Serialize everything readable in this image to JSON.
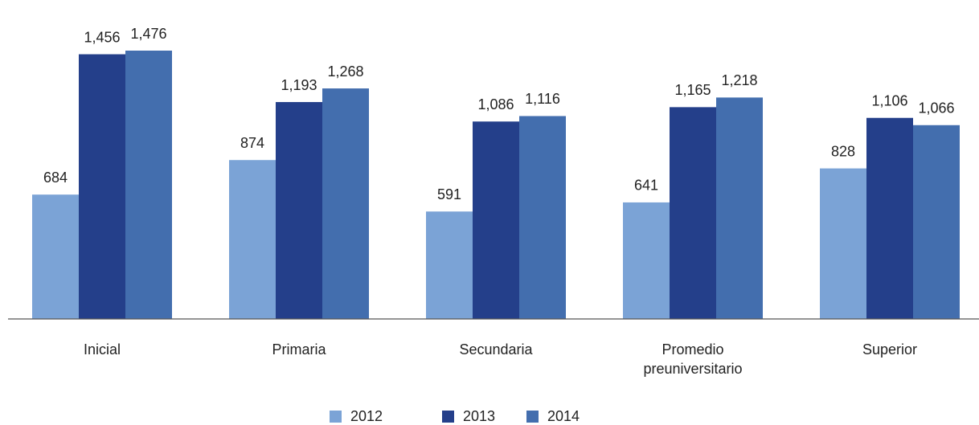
{
  "chart_data": {
    "type": "bar",
    "categories": [
      "Inicial",
      "Primaria",
      "Secundaria",
      "Promedio preuniversitario",
      "Superior"
    ],
    "series": [
      {
        "name": "2012",
        "color": "#7ba3d6",
        "values": [
          684,
          874,
          591,
          641,
          828
        ]
      },
      {
        "name": "2013",
        "color": "#243f8a",
        "values": [
          1456,
          1193,
          1086,
          1165,
          1106
        ],
        "value_labels": [
          "1,456",
          "1,193",
          "1,086",
          "1,165",
          "1,106"
        ]
      },
      {
        "name": "2014",
        "color": "#436eae",
        "values": [
          1476,
          1268,
          1116,
          1218,
          1066
        ],
        "value_labels": [
          "1,476",
          "1,268",
          "1,116",
          "1,218",
          "1,066"
        ]
      }
    ],
    "legend": "bottom"
  }
}
